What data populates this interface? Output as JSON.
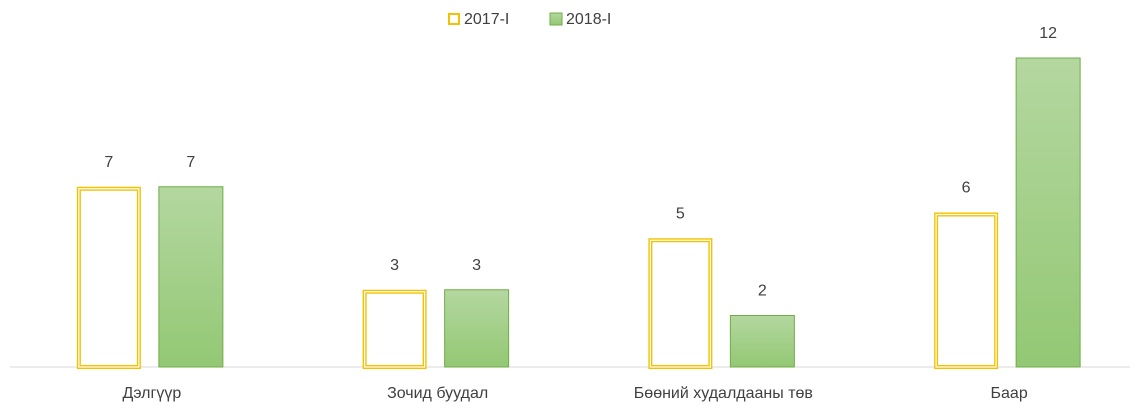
{
  "chart_data": {
    "type": "bar",
    "categories": [
      "Дэлгүүр",
      "Зочид буудал",
      "Бөөний худалдааны төв",
      "Баар"
    ],
    "series": [
      {
        "name": "2017-I",
        "color": "#f2c200",
        "values": [
          7,
          3,
          5,
          6
        ]
      },
      {
        "name": "2018-I",
        "color": "#70ad47",
        "values": [
          7,
          3,
          2,
          12
        ]
      }
    ],
    "legend": "top"
  }
}
